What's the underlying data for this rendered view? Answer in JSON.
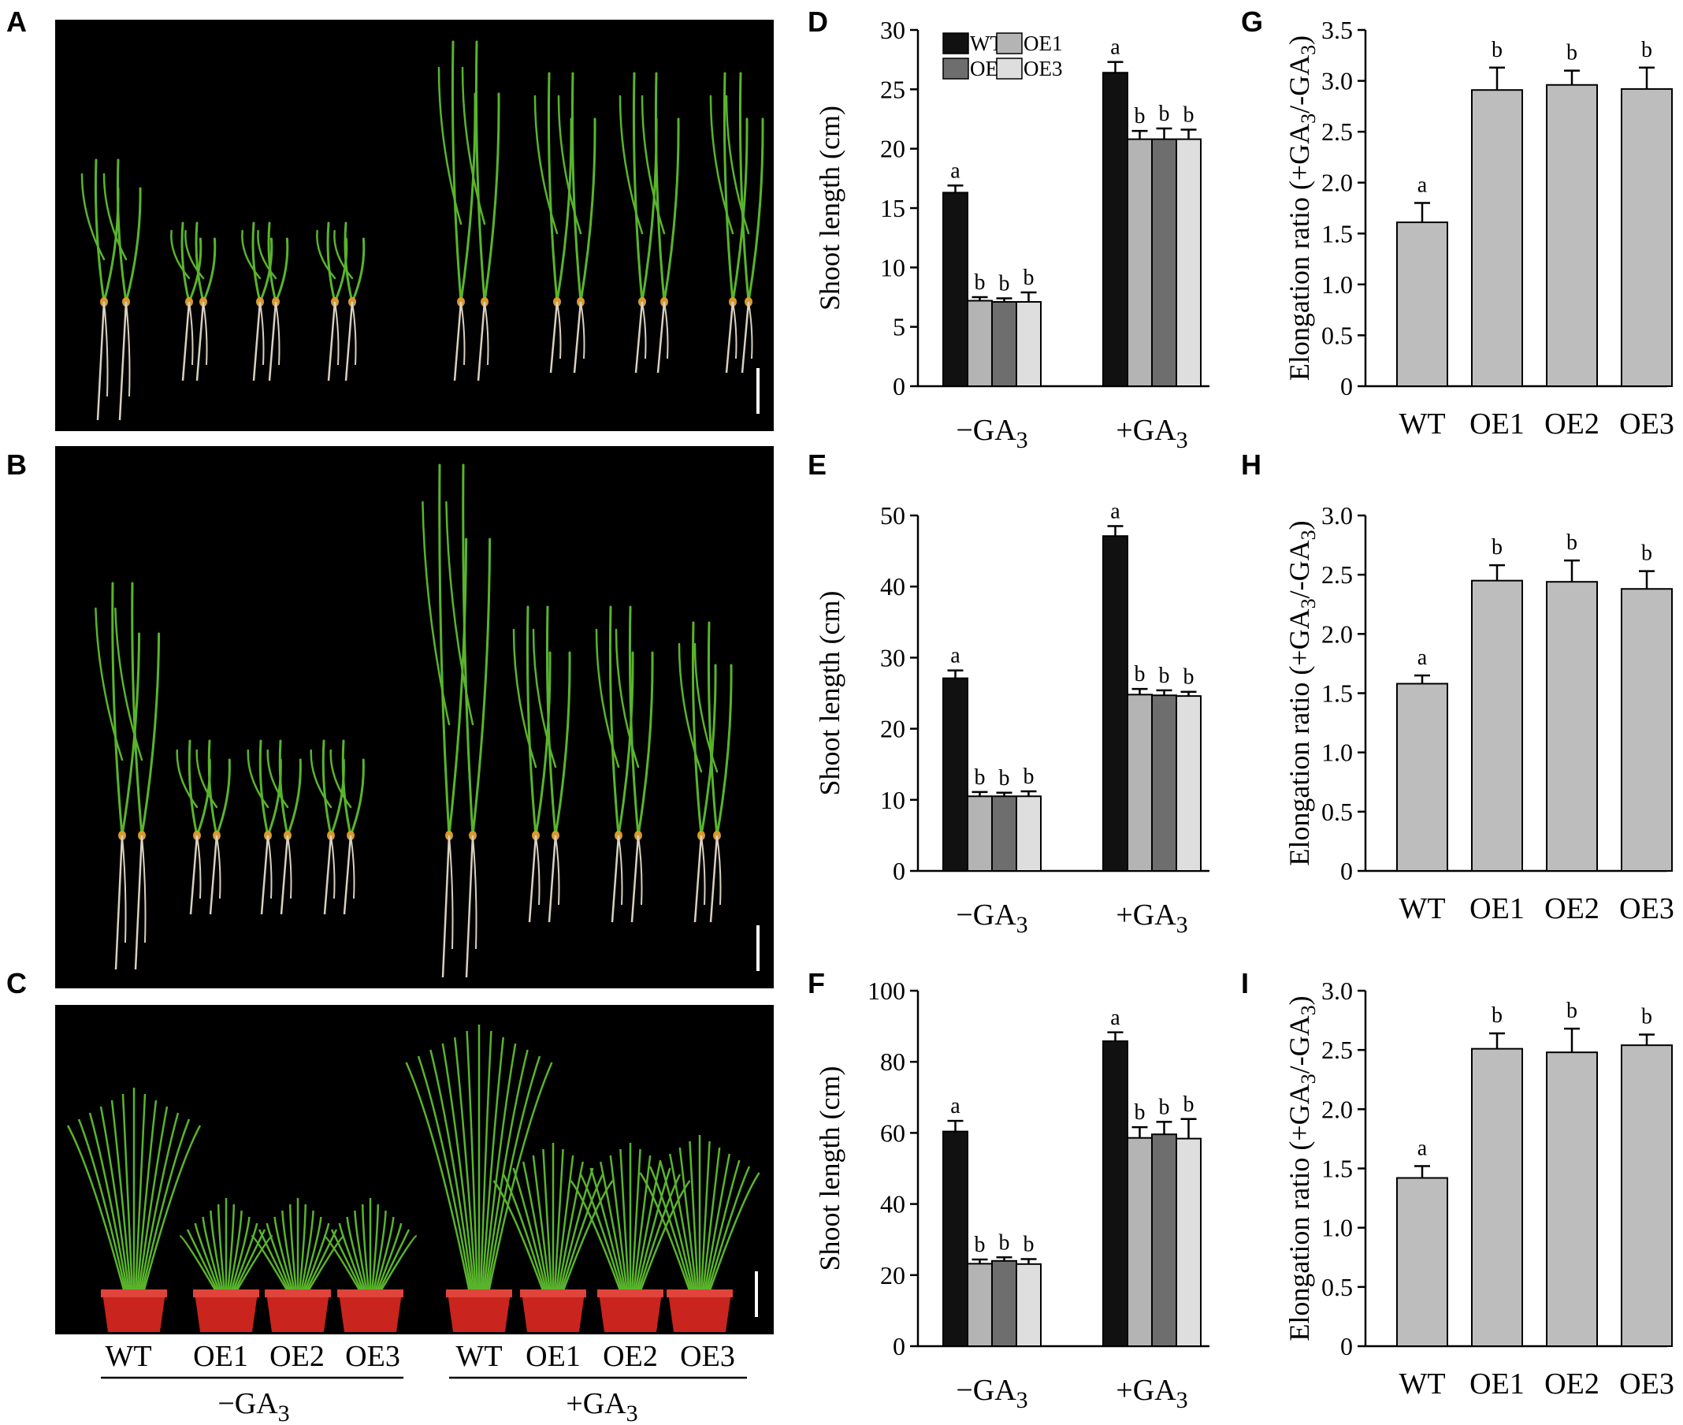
{
  "panel_letters": {
    "A": "A",
    "B": "B",
    "C": "C",
    "D": "D",
    "E": "E",
    "F": "F",
    "G": "G",
    "H": "H",
    "I": "I"
  },
  "photo_captions": {
    "genotypes_left": [
      "WT",
      "OE1",
      "OE2",
      "OE3"
    ],
    "genotypes_right": [
      "WT",
      "OE1",
      "OE2",
      "OE3"
    ],
    "treatment_left": "−GA",
    "treatment_right": "+GA",
    "subscript": "3"
  },
  "colors": {
    "WT": "#111111",
    "OE1": "#b4b4b4",
    "OE2": "#6e6e6e",
    "OE3": "#dedede",
    "ratio_bar": "#bdbdbd",
    "photo_background": "#000000",
    "leaf_green": "#59b42c",
    "root_white": "#d8d0c0",
    "pot_red": "#c9241e",
    "scale_bar": "#ffffff"
  },
  "chart_data": [
    {
      "panel": "D",
      "type": "bar",
      "ylabel": "Shoot length (cm)",
      "categories": [
        "−GA3",
        "+GA3"
      ],
      "ylim": [
        0,
        30
      ],
      "yticks": [
        0,
        5,
        10,
        15,
        20,
        25,
        30
      ],
      "legend": {
        "placement": "top-left",
        "entries": [
          "WT",
          "OE1",
          "OE2",
          "OE3"
        ]
      },
      "series": [
        {
          "name": "WT",
          "values": [
            16.3,
            26.4
          ],
          "errors": [
            0.6,
            0.9
          ],
          "sig": [
            "a",
            "a"
          ]
        },
        {
          "name": "OE1",
          "values": [
            7.2,
            20.8
          ],
          "errors": [
            0.3,
            0.7
          ],
          "sig": [
            "b",
            "b"
          ]
        },
        {
          "name": "OE2",
          "values": [
            7.1,
            20.8
          ],
          "errors": [
            0.3,
            0.9
          ],
          "sig": [
            "b",
            "b"
          ]
        },
        {
          "name": "OE3",
          "values": [
            7.1,
            20.8
          ],
          "errors": [
            0.8,
            0.8
          ],
          "sig": [
            "b",
            "b"
          ]
        }
      ]
    },
    {
      "panel": "E",
      "type": "bar",
      "ylabel": "Shoot length (cm)",
      "categories": [
        "−GA3",
        "+GA3"
      ],
      "ylim": [
        0,
        50
      ],
      "yticks": [
        0,
        10,
        20,
        30,
        40,
        50
      ],
      "series": [
        {
          "name": "WT",
          "values": [
            27.1,
            47.1
          ],
          "errors": [
            1.1,
            1.4
          ],
          "sig": [
            "a",
            "a"
          ]
        },
        {
          "name": "OE1",
          "values": [
            10.5,
            24.8
          ],
          "errors": [
            0.6,
            0.8
          ],
          "sig": [
            "b",
            "b"
          ]
        },
        {
          "name": "OE2",
          "values": [
            10.5,
            24.7
          ],
          "errors": [
            0.5,
            0.7
          ],
          "sig": [
            "b",
            "b"
          ]
        },
        {
          "name": "OE3",
          "values": [
            10.5,
            24.6
          ],
          "errors": [
            0.7,
            0.6
          ],
          "sig": [
            "b",
            "b"
          ]
        }
      ]
    },
    {
      "panel": "F",
      "type": "bar",
      "ylabel": "Shoot length (cm)",
      "categories": [
        "−GA3",
        "+GA3"
      ],
      "ylim": [
        0,
        100
      ],
      "yticks": [
        0,
        20,
        40,
        60,
        80,
        100
      ],
      "series": [
        {
          "name": "WT",
          "values": [
            60.4,
            85.8
          ],
          "errors": [
            3.0,
            2.5
          ],
          "sig": [
            "a",
            "a"
          ]
        },
        {
          "name": "OE1",
          "values": [
            23.2,
            58.6
          ],
          "errors": [
            1.2,
            3.0
          ],
          "sig": [
            "b",
            "b"
          ]
        },
        {
          "name": "OE2",
          "values": [
            24.0,
            59.6
          ],
          "errors": [
            1.0,
            3.5
          ],
          "sig": [
            "b",
            "b"
          ]
        },
        {
          "name": "OE3",
          "values": [
            23.1,
            58.4
          ],
          "errors": [
            1.4,
            5.5
          ],
          "sig": [
            "b",
            "b"
          ]
        }
      ]
    },
    {
      "panel": "G",
      "type": "bar",
      "ylabel": "Elongation ratio (+GA3/-GA3)",
      "categories": [
        "WT",
        "OE1",
        "OE2",
        "OE3"
      ],
      "ylim": [
        0,
        3.5
      ],
      "yticks": [
        "0",
        "0.5",
        "1.0",
        "1.5",
        "2.0",
        "2.5",
        "3.0",
        "3.5"
      ],
      "values": [
        1.61,
        2.91,
        2.96,
        2.92
      ],
      "errors": [
        0.19,
        0.22,
        0.14,
        0.21
      ],
      "sig": [
        "a",
        "b",
        "b",
        "b"
      ]
    },
    {
      "panel": "H",
      "type": "bar",
      "ylabel": "Elongation ratio (+GA3/-GA3)",
      "categories": [
        "WT",
        "OE1",
        "OE2",
        "OE3"
      ],
      "ylim": [
        0,
        3.0
      ],
      "yticks": [
        "0",
        "0.5",
        "1.0",
        "1.5",
        "2.0",
        "2.5",
        "3.0"
      ],
      "values": [
        1.58,
        2.45,
        2.44,
        2.38
      ],
      "errors": [
        0.07,
        0.13,
        0.18,
        0.15
      ],
      "sig": [
        "a",
        "b",
        "b",
        "b"
      ]
    },
    {
      "panel": "I",
      "type": "bar",
      "ylabel": "Elongation ratio (+GA3/-GA3)",
      "categories": [
        "WT",
        "OE1",
        "OE2",
        "OE3"
      ],
      "ylim": [
        0,
        3.0
      ],
      "yticks": [
        "0",
        "0.5",
        "1.0",
        "1.5",
        "2.0",
        "2.5",
        "3.0"
      ],
      "values": [
        1.42,
        2.51,
        2.48,
        2.54
      ],
      "errors": [
        0.1,
        0.13,
        0.2,
        0.09
      ],
      "sig": [
        "a",
        "b",
        "b",
        "b"
      ]
    }
  ]
}
